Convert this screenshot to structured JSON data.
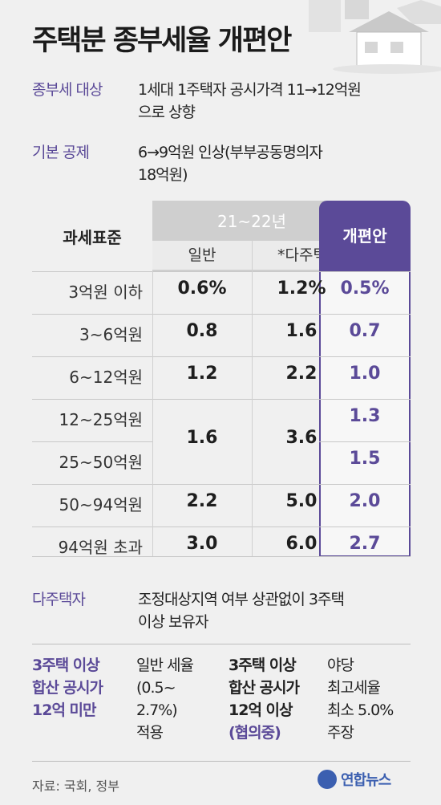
{
  "title": "주택분 종부세율 개편안",
  "info": [
    {
      "label": "종부세 대상",
      "lines": [
        "1세대 1주택자 공시가격 11→12억원",
        "으로 상향"
      ]
    },
    {
      "label": "기본 공제",
      "lines": [
        "6→9억원 인상(부부공동명의자",
        "18억원)"
      ]
    }
  ],
  "table": {
    "std_header": "과세표준",
    "period_header": "21~22년",
    "sub_general": "일반",
    "sub_multi": "*다주택",
    "new_header": "개편안",
    "rows": [
      {
        "std": "3억원 이하",
        "general": "0.6%",
        "multi": "1.2%",
        "new": "0.5%"
      },
      {
        "std": "3~6억원",
        "general": "0.8",
        "multi": "1.6",
        "new": "0.7"
      },
      {
        "std": "6~12억원",
        "general": "1.2",
        "multi": "2.2",
        "new": "1.0"
      },
      {
        "std": "12~25억원",
        "general": "1.6",
        "multi": "3.6",
        "new": "1.3"
      },
      {
        "std": "25~50억원",
        "general": "",
        "multi": "",
        "new": "1.5"
      },
      {
        "std": "50~94억원",
        "general": "2.2",
        "multi": "5.0",
        "new": "2.0"
      },
      {
        "std": "94억원 초과",
        "general": "3.0",
        "multi": "6.0",
        "new": "2.7"
      }
    ]
  },
  "multi_owner": {
    "label": "다주택자",
    "lines": [
      "조정대상지역 여부 상관없이 3주택",
      "이상 보유자"
    ]
  },
  "under12": {
    "label_lines": [
      "3주택 이상",
      "합산 공시가",
      "12억 미만"
    ],
    "text_lines": [
      "일반 세율",
      "(0.5~",
      "2.7%)",
      "적용"
    ]
  },
  "over12": {
    "label_lines": [
      "3주택 이상",
      "합산 공시가",
      "12억 이상"
    ],
    "note": "(협의중)",
    "text_lines": [
      "야당",
      "최고세율",
      "최소 5.0%",
      "주장"
    ]
  },
  "source": "자료: 국회, 정부",
  "logo": "연합뉴스",
  "colors": {
    "accent": "#5b4a98",
    "logo": "#3b5fb0",
    "header_gray": "#cfcfcf"
  }
}
